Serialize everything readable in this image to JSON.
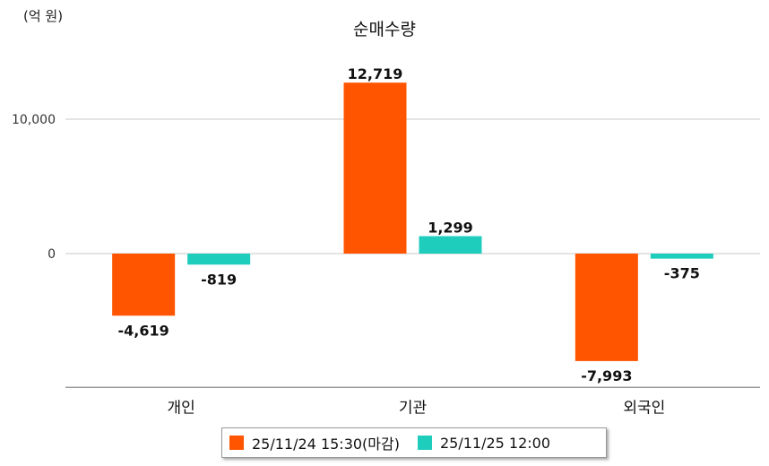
{
  "unit_label": "(억 원)",
  "chart_data": {
    "type": "bar",
    "title": "순매수량",
    "categories": [
      "개인",
      "기관",
      "외국인"
    ],
    "series": [
      {
        "name": "25/11/24 15:30(마감)",
        "color": "#ff5500",
        "values": [
          -4619,
          12719,
          -7993
        ]
      },
      {
        "name": "25/11/25 12:00",
        "color": "#1fcdbd",
        "values": [
          -819,
          1299,
          -375
        ]
      }
    ],
    "value_labels": [
      [
        "-4,619",
        "12,719",
        "-7,993"
      ],
      [
        "-819",
        "1,299",
        "-375"
      ]
    ],
    "y_ticks": [
      0,
      10000
    ],
    "y_tick_labels": [
      "0",
      "10,000"
    ],
    "ylim": [
      -9950,
      15000
    ],
    "grid": true,
    "legend_position": "bottom"
  }
}
